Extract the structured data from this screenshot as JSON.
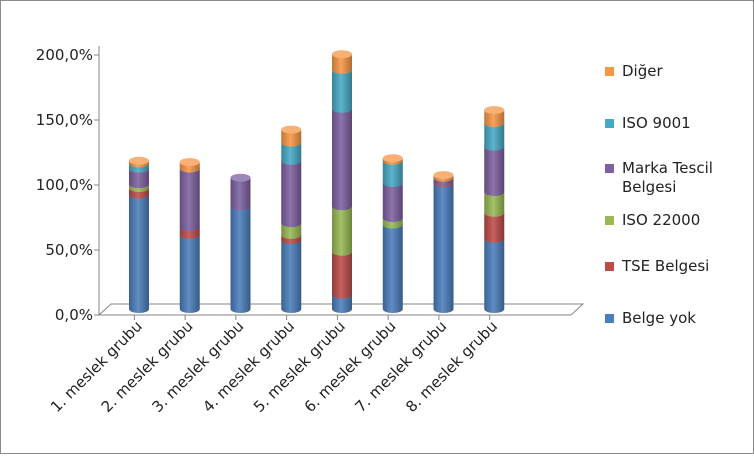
{
  "chart_data": {
    "type": "bar",
    "stacked": true,
    "style": "3d-cylinder",
    "title": "",
    "xlabel": "",
    "ylabel": "",
    "ylim": [
      0,
      200
    ],
    "y_ticks": [
      "0,0%",
      "50,0%",
      "100,0%",
      "150,0%",
      "200,0%"
    ],
    "grid": false,
    "legend_position": "right",
    "categories": [
      "1. meslek grubu",
      "2. meslek grubu",
      "3. meslek grubu",
      "4. meslek grubu",
      "5. meslek grubu",
      "6. meslek grubu",
      "7. meslek grubu",
      "8. meslek grubu"
    ],
    "series": [
      {
        "name": "Belge yok",
        "color": "#4a7ebb",
        "values": [
          88,
          57,
          79,
          53,
          11,
          65,
          97,
          54
        ]
      },
      {
        "name": "TSE Belgesi",
        "color": "#be4b48",
        "values": [
          5,
          6,
          0,
          4,
          33,
          0,
          1,
          20
        ]
      },
      {
        "name": "ISO 22000",
        "color": "#98b954",
        "values": [
          3,
          0,
          0,
          9,
          35,
          5,
          0,
          16
        ]
      },
      {
        "name": "Marka Tescil Belgesi",
        "color": "#7d60a0",
        "values": [
          12,
          45,
          22,
          48,
          75,
          27,
          3,
          35
        ]
      },
      {
        "name": "ISO 9001",
        "color": "#46aac5",
        "values": [
          4,
          0,
          0,
          14,
          30,
          17,
          0,
          18
        ]
      },
      {
        "name": "Diğer",
        "color": "#f79646",
        "values": [
          2,
          5,
          0,
          10,
          12,
          2,
          2,
          10
        ]
      }
    ],
    "legend_order": [
      "Diğer",
      "ISO 9001",
      "Marka Tescil Belgesi",
      "ISO 22000",
      "TSE Belgesi",
      "Belge yok"
    ],
    "legend_lines": {
      "Diğer": [
        "Diğer"
      ],
      "ISO 9001": [
        "ISO 9001"
      ],
      "Marka Tescil Belgesi": [
        "Marka Tescil",
        "Belgesi"
      ],
      "ISO 22000": [
        "ISO 22000"
      ],
      "TSE Belgesi": [
        "TSE Belgesi"
      ],
      "Belge yok": [
        "Belge yok"
      ]
    }
  }
}
